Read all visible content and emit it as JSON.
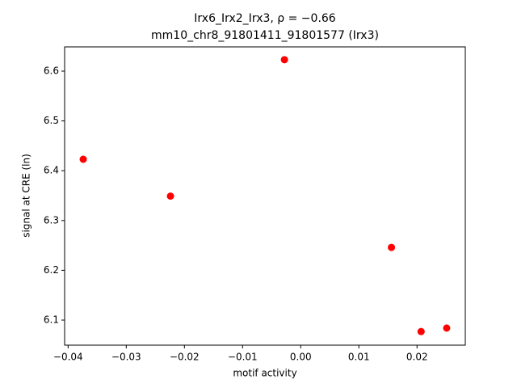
{
  "chart_data": {
    "type": "scatter",
    "title": "Irx6_Irx2_Irx3, ρ = −0.66",
    "subtitle": "mm10_chr8_91801411_91801577 (Irx3)",
    "x_label": "motif activity",
    "y_label": "signal at CRE (ln)",
    "color": "#ff0000",
    "x": [
      -0.0374,
      -0.0224,
      -0.0028,
      0.0156,
      0.0207,
      0.0251
    ],
    "values": [
      6.423,
      6.349,
      6.623,
      6.246,
      6.077,
      6.084
    ],
    "xlim": [
      -0.0406,
      0.0283
    ],
    "ylim": [
      6.0497,
      6.6487
    ],
    "xticks": [
      {
        "value": -0.04,
        "label": "−0.04"
      },
      {
        "value": -0.03,
        "label": "−0.03"
      },
      {
        "value": -0.02,
        "label": "−0.02"
      },
      {
        "value": -0.01,
        "label": "−0.01"
      },
      {
        "value": 0,
        "label": "0.00"
      },
      0.01,
      0.02
    ],
    "yticks": [
      6.1,
      6.2,
      6.3,
      6.4,
      6.5,
      6.6
    ],
    "grid": false
  }
}
